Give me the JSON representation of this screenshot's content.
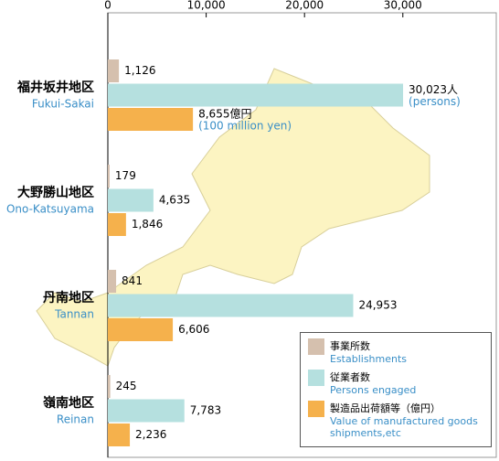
{
  "chart_data": {
    "type": "bar",
    "orientation": "horizontal",
    "categories": [
      "福井坂井地区",
      "大野勝山地区",
      "丹南地区",
      "嶺南地区"
    ],
    "categories_en": [
      "Fukui-Sakai",
      "Ono-Katsuyama",
      "Tannan",
      "Reinan"
    ],
    "series": [
      {
        "name": "事業所数",
        "name_en": "Establishments",
        "color": "#d5c0ae",
        "values": [
          1126,
          179,
          841,
          245
        ],
        "value_labels": [
          "1,126",
          "179",
          "841",
          "245"
        ]
      },
      {
        "name": "従業者数",
        "name_en": "Persons engaged",
        "color": "#b5e0df",
        "values": [
          30023,
          4635,
          24953,
          7783
        ],
        "value_labels": [
          "30,023人",
          "4,635",
          "24,953",
          "7,783"
        ]
      },
      {
        "name": "製造品出荷額等（億円）",
        "name_en": "Value of manufactured goods shipments,etc",
        "color": "#f5b14c",
        "values": [
          8655,
          1846,
          6606,
          2236
        ],
        "value_labels": [
          "8,655億円",
          "1,846",
          "6,606",
          "2,236"
        ]
      }
    ],
    "annotations": [
      "(persons)",
      "(100 million yen)"
    ],
    "xlim": [
      0,
      39500
    ],
    "xticks": [
      0,
      {
        "value": 10000,
        "label": "10,000"
      },
      {
        "value": 20000,
        "label": "20,000"
      },
      {
        "value": 30000,
        "label": "30,000"
      }
    ],
    "legend": "bottom-right"
  }
}
